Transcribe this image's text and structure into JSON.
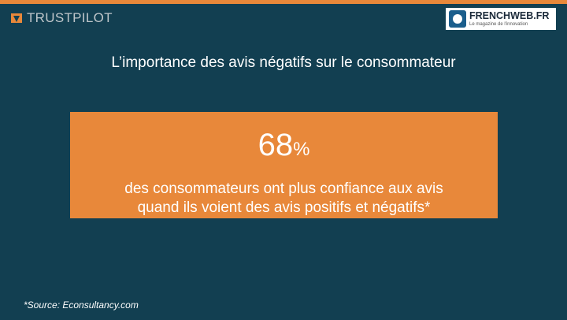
{
  "header": {
    "left_logo": "TRUSTPILOT",
    "right_logo": {
      "name": "FRENCHWEB.FR",
      "tagline": "Le magazine de l'innovation"
    }
  },
  "title": "L’importance des avis négatifs sur le consommateur",
  "highlight": {
    "number": "68",
    "unit": "%",
    "lines": [
      "des consommateurs ont plus confiance aux avis",
      "quand ils voient des avis positifs et négatifs*"
    ]
  },
  "footnote": "*Source: Econsultancy.com"
}
